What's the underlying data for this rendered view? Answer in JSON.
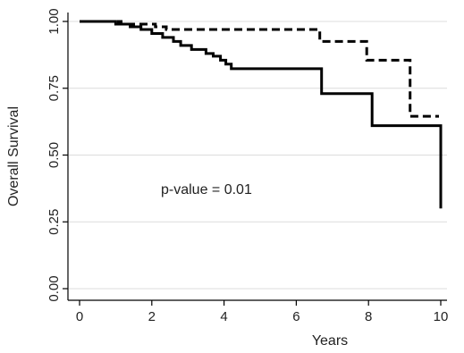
{
  "chart_data": {
    "type": "line",
    "step": true,
    "title": "",
    "xlabel": "Years",
    "ylabel": "Overall Survival",
    "xlim": [
      0,
      10
    ],
    "ylim": [
      0,
      1
    ],
    "xticks": [
      0,
      2,
      4,
      6,
      8,
      10
    ],
    "yticks": [
      0,
      0.25,
      0.5,
      0.75,
      1.0
    ],
    "ytick_labels": [
      "0.00",
      "0.25",
      "0.50",
      "0.75",
      "1.00"
    ],
    "grid": true,
    "legend": "none",
    "annotation": "p-value = 0.01",
    "series": [
      {
        "style": "solid",
        "color": "#000000",
        "points": [
          [
            0,
            1.0
          ],
          [
            1.0,
            1.0
          ],
          [
            1.0,
            0.99
          ],
          [
            1.4,
            0.99
          ],
          [
            1.4,
            0.98
          ],
          [
            1.7,
            0.98
          ],
          [
            1.7,
            0.97
          ],
          [
            2.0,
            0.97
          ],
          [
            2.0,
            0.955
          ],
          [
            2.3,
            0.955
          ],
          [
            2.3,
            0.94
          ],
          [
            2.6,
            0.94
          ],
          [
            2.6,
            0.925
          ],
          [
            2.8,
            0.925
          ],
          [
            2.8,
            0.91
          ],
          [
            3.1,
            0.91
          ],
          [
            3.1,
            0.895
          ],
          [
            3.5,
            0.895
          ],
          [
            3.5,
            0.88
          ],
          [
            3.7,
            0.88
          ],
          [
            3.7,
            0.87
          ],
          [
            3.9,
            0.87
          ],
          [
            3.9,
            0.855
          ],
          [
            4.05,
            0.855
          ],
          [
            4.05,
            0.84
          ],
          [
            4.2,
            0.84
          ],
          [
            4.2,
            0.823
          ],
          [
            6.7,
            0.823
          ],
          [
            6.7,
            0.73
          ],
          [
            8.1,
            0.73
          ],
          [
            8.1,
            0.61
          ],
          [
            10.0,
            0.61
          ],
          [
            10.0,
            0.3
          ]
        ]
      },
      {
        "style": "dashed",
        "color": "#000000",
        "points": [
          [
            0,
            1.0
          ],
          [
            1.15,
            1.0
          ],
          [
            1.15,
            0.99
          ],
          [
            2.1,
            0.99
          ],
          [
            2.1,
            0.98
          ],
          [
            2.4,
            0.98
          ],
          [
            2.4,
            0.97
          ],
          [
            6.65,
            0.97
          ],
          [
            6.65,
            0.925
          ],
          [
            7.95,
            0.925
          ],
          [
            7.95,
            0.855
          ],
          [
            9.15,
            0.855
          ],
          [
            9.15,
            0.645
          ],
          [
            9.95,
            0.645
          ]
        ]
      }
    ]
  }
}
